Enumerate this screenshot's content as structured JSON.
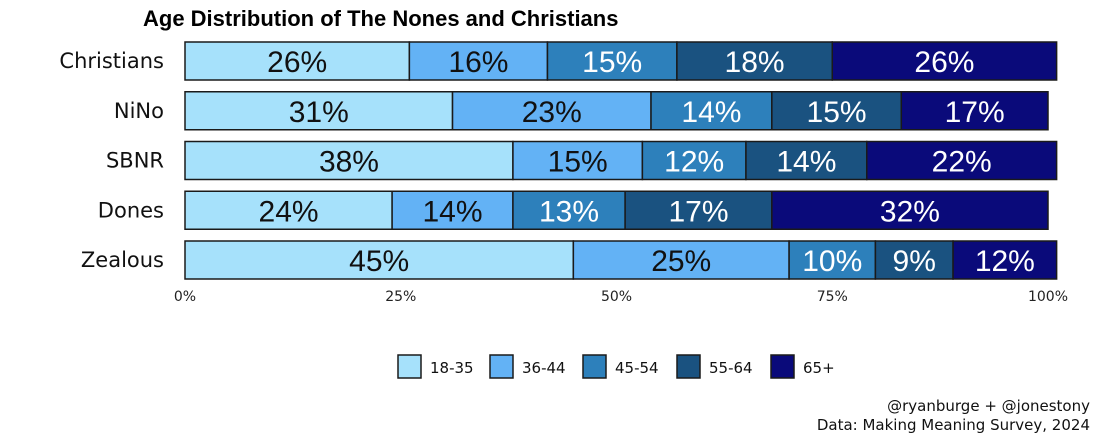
{
  "chart_data": {
    "type": "bar",
    "orientation": "horizontal",
    "stacked": true,
    "title": "Age Distribution of The Nones and Christians",
    "categories": [
      "Christians",
      "NiNo",
      "SBNR",
      "Dones",
      "Zealous"
    ],
    "series": [
      {
        "name": "18-35",
        "color": "#a6e1fb",
        "text_color": "#111111",
        "values": [
          26,
          31,
          38,
          24,
          45
        ],
        "labels": [
          "26%",
          "31%",
          "38%",
          "24%",
          "45%"
        ]
      },
      {
        "name": "36-44",
        "color": "#63b2f5",
        "text_color": "#111111",
        "values": [
          16,
          23,
          15,
          14,
          25
        ],
        "labels": [
          "16%",
          "23%",
          "15%",
          "14%",
          "25%"
        ]
      },
      {
        "name": "45-54",
        "color": "#2d80bb",
        "text_color": "#ffffff",
        "values": [
          15,
          14,
          12,
          13,
          10
        ],
        "labels": [
          "15%",
          "14%",
          "12%",
          "13%",
          "10%"
        ]
      },
      {
        "name": "55-64",
        "color": "#1a5280",
        "text_color": "#ffffff",
        "values": [
          18,
          15,
          14,
          17,
          9
        ],
        "labels": [
          "18%",
          "15%",
          "14%",
          "17%",
          "9%"
        ]
      },
      {
        "name": "65+",
        "color": "#0a0a7a",
        "text_color": "#ffffff",
        "values": [
          26,
          17,
          22,
          32,
          12
        ],
        "labels": [
          "26%",
          "17%",
          "22%",
          "32%",
          "12%"
        ]
      }
    ],
    "xlim": [
      0,
      100
    ],
    "xticks": [
      0,
      25,
      50,
      75,
      100
    ],
    "xtick_labels": [
      "0%",
      "25%",
      "50%",
      "75%",
      "100%"
    ],
    "xlabel": "",
    "ylabel": "",
    "grid": false,
    "legend_position": "bottom"
  },
  "credits": {
    "line1": "@ryanburge + @jonestony",
    "line2": "Data: Making Meaning Survey, 2024"
  }
}
